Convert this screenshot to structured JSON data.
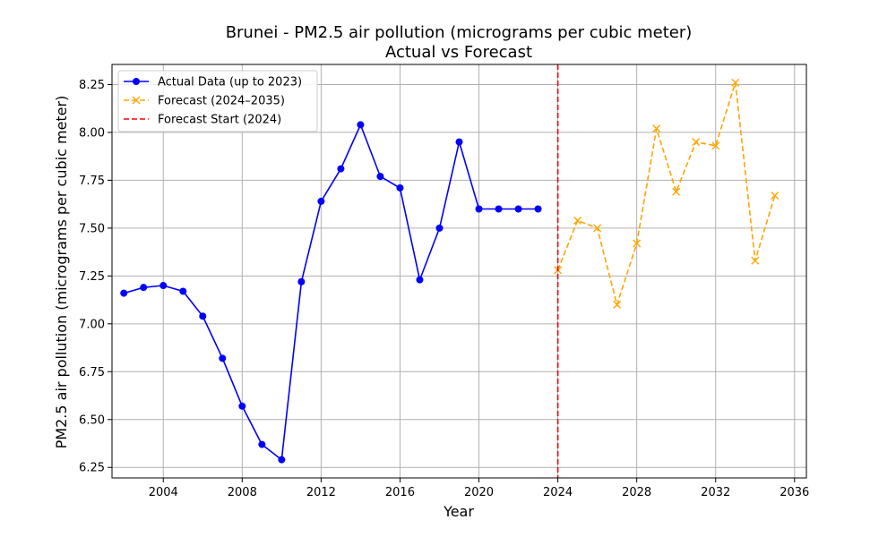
{
  "chart_data": {
    "type": "line",
    "title": "Brunei - PM2.5 air pollution (micrograms per cubic meter)",
    "subtitle": "Actual vs Forecast",
    "xlabel": "Year",
    "ylabel": "PM2.5 air pollution (micrograms per cubic meter)",
    "xlim": [
      2001.4,
      2036.6
    ],
    "ylim": [
      6.195,
      8.355
    ],
    "xticks": [
      2004,
      2008,
      2012,
      2016,
      2020,
      2024,
      2028,
      2032,
      2036
    ],
    "yticks": [
      6.25,
      6.5,
      6.75,
      7.0,
      7.25,
      7.5,
      7.75,
      8.0,
      8.25
    ],
    "grid": true,
    "legend_position": "upper-left",
    "series": [
      {
        "name": "Actual Data (up to 2023)",
        "color": "#0000ff",
        "style": "solid",
        "marker": "circle",
        "x": [
          2002,
          2003,
          2004,
          2005,
          2006,
          2007,
          2008,
          2009,
          2010,
          2011,
          2012,
          2013,
          2014,
          2015,
          2016,
          2017,
          2018,
          2019,
          2020,
          2021,
          2022,
          2023
        ],
        "y": [
          7.16,
          7.19,
          7.2,
          7.17,
          7.04,
          6.82,
          6.57,
          6.37,
          6.29,
          7.22,
          7.64,
          7.81,
          8.04,
          7.77,
          7.71,
          7.23,
          7.5,
          7.95,
          7.6,
          7.6,
          7.6,
          7.6
        ]
      },
      {
        "name": "Forecast (2024–2035)",
        "color": "#ffa500",
        "style": "dashed",
        "marker": "x",
        "x": [
          2024,
          2025,
          2026,
          2027,
          2028,
          2029,
          2030,
          2031,
          2032,
          2033,
          2034,
          2035
        ],
        "y": [
          7.28,
          7.54,
          7.5,
          7.1,
          7.42,
          8.02,
          7.69,
          7.95,
          7.93,
          8.26,
          7.33,
          7.67
        ]
      }
    ],
    "vlines": [
      {
        "name": "Forecast Start (2024)",
        "x": 2024,
        "color": "#ff0000",
        "style": "dashed"
      }
    ]
  }
}
